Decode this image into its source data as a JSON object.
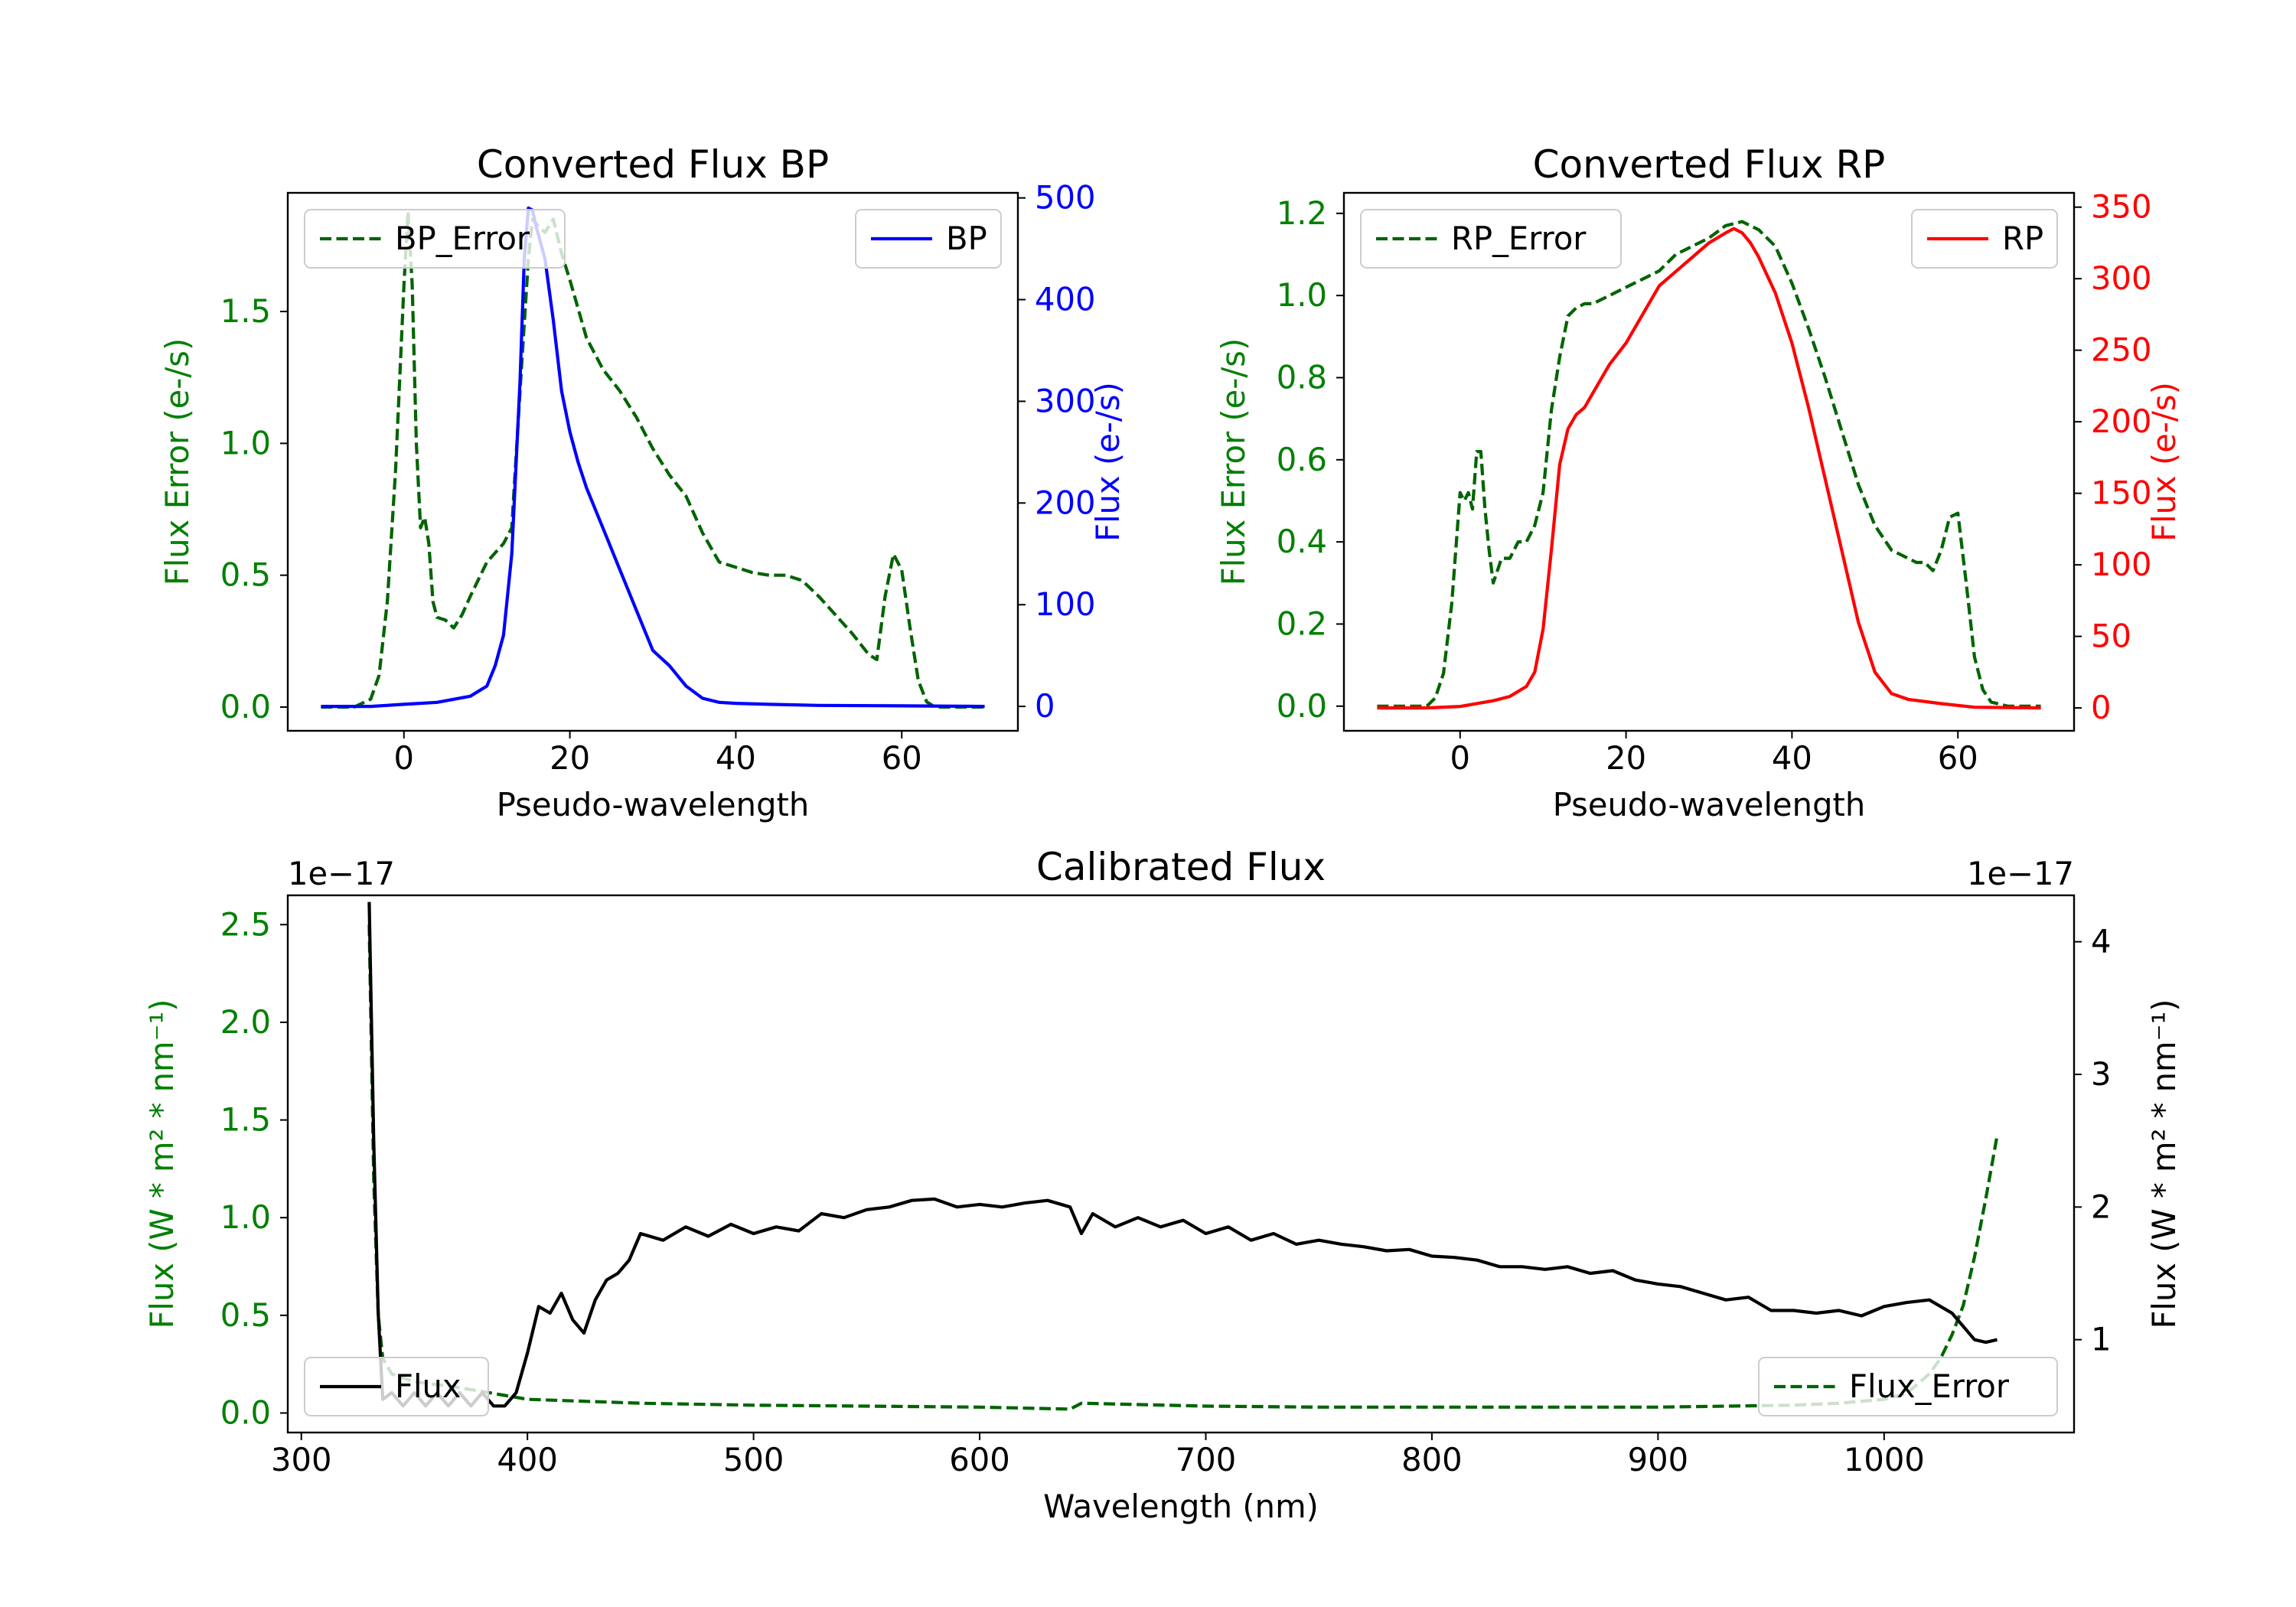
{
  "chart_data": [
    {
      "type": "line",
      "title": "Converted Flux BP",
      "xlabel": "Pseudo-wavelength",
      "ylabel_left": "Flux Error (e-/s)",
      "ylabel_right": "Flux (e-/s)",
      "xlim": [
        -14,
        74
      ],
      "ylim_left": [
        -0.09,
        1.95
      ],
      "ylim_right": [
        -24,
        505
      ],
      "xticks": [
        0,
        20,
        40,
        60
      ],
      "yticks_left": [
        0.0,
        0.5,
        1.0,
        1.5
      ],
      "yticks_right": [
        0,
        100,
        200,
        300,
        400,
        500
      ],
      "ytick_labels_left": [
        "0.0",
        "0.5",
        "1.0",
        "1.5"
      ],
      "left_color": "#008000",
      "right_color": "#0000ff",
      "legend_left": {
        "label": "BP_Error",
        "position": "upper-left"
      },
      "legend_right": {
        "label": "BP",
        "position": "upper-right"
      },
      "series": [
        {
          "name": "BP_Error",
          "axis": "left",
          "color": "#006400",
          "style": "dashed",
          "x": [
            -10,
            -6,
            -4,
            -3,
            -2,
            -1,
            0,
            0.5,
            1,
            1.5,
            2,
            2.5,
            3,
            3.5,
            4,
            5,
            6,
            7,
            8,
            10,
            12,
            13,
            14,
            15,
            15.5,
            16,
            17,
            18,
            19,
            20,
            22,
            24,
            26,
            28,
            30,
            32,
            34,
            36,
            38,
            40,
            42,
            44,
            46,
            48,
            50,
            52,
            54,
            56,
            57,
            58,
            59,
            60,
            61,
            62,
            63,
            64,
            66,
            70
          ],
          "y": [
            0,
            0,
            0.03,
            0.12,
            0.4,
            0.9,
            1.6,
            1.88,
            1.6,
            1.0,
            0.68,
            0.72,
            0.62,
            0.4,
            0.34,
            0.33,
            0.3,
            0.35,
            0.42,
            0.55,
            0.62,
            0.68,
            1.2,
            1.7,
            1.85,
            1.83,
            1.8,
            1.85,
            1.72,
            1.62,
            1.4,
            1.28,
            1.2,
            1.1,
            0.98,
            0.88,
            0.8,
            0.66,
            0.55,
            0.53,
            0.51,
            0.5,
            0.5,
            0.48,
            0.42,
            0.35,
            0.28,
            0.2,
            0.18,
            0.42,
            0.58,
            0.52,
            0.3,
            0.1,
            0.02,
            0,
            0,
            0
          ]
        },
        {
          "name": "BP",
          "axis": "right",
          "color": "#0000ff",
          "style": "solid",
          "x": [
            -10,
            -4,
            0,
            4,
            8,
            10,
            11,
            12,
            13,
            14,
            14.5,
            15,
            15.5,
            16,
            17,
            18,
            19,
            20,
            21,
            22,
            24,
            26,
            28,
            30,
            32,
            34,
            36,
            38,
            40,
            44,
            50,
            60,
            70
          ],
          "y": [
            0,
            0,
            2,
            4,
            10,
            20,
            40,
            70,
            150,
            320,
            440,
            490,
            488,
            470,
            440,
            380,
            310,
            270,
            240,
            215,
            175,
            135,
            95,
            55,
            40,
            20,
            8,
            4,
            3,
            2,
            1,
            0.5,
            0
          ]
        }
      ]
    },
    {
      "type": "line",
      "title": "Converted Flux RP",
      "xlabel": "Pseudo-wavelength",
      "ylabel_left": "Flux Error (e-/s)",
      "ylabel_right": "Flux (e-/s)",
      "xlim": [
        -14,
        74
      ],
      "ylim_left": [
        -0.06,
        1.25
      ],
      "ylim_right": [
        -16,
        360
      ],
      "xticks": [
        0,
        20,
        40,
        60
      ],
      "yticks_left": [
        0.0,
        0.2,
        0.4,
        0.6,
        0.8,
        1.0,
        1.2
      ],
      "yticks_right": [
        0,
        50,
        100,
        150,
        200,
        250,
        300,
        350
      ],
      "ytick_labels_left": [
        "0.0",
        "0.2",
        "0.4",
        "0.6",
        "0.8",
        "1.0",
        "1.2"
      ],
      "left_color": "#008000",
      "right_color": "#ff0000",
      "legend_left": {
        "label": "RP_Error",
        "position": "upper-left"
      },
      "legend_right": {
        "label": "RP",
        "position": "upper-right"
      },
      "series": [
        {
          "name": "RP_Error",
          "axis": "left",
          "color": "#006400",
          "style": "dashed",
          "x": [
            -10,
            -4,
            -3,
            -2,
            -1,
            0,
            0.5,
            1,
            1.5,
            2,
            2.5,
            3,
            3.5,
            4,
            5,
            6,
            7,
            8,
            9,
            10,
            11,
            12,
            13,
            14,
            15,
            16,
            18,
            20,
            22,
            24,
            26,
            28,
            30,
            32,
            34,
            36,
            38,
            40,
            42,
            44,
            46,
            48,
            50,
            52,
            54,
            55,
            56,
            57,
            58,
            59,
            60,
            61,
            62,
            63,
            64,
            66,
            70
          ],
          "y": [
            0,
            0,
            0.02,
            0.08,
            0.25,
            0.52,
            0.5,
            0.52,
            0.48,
            0.62,
            0.62,
            0.48,
            0.38,
            0.3,
            0.36,
            0.36,
            0.4,
            0.4,
            0.44,
            0.52,
            0.72,
            0.85,
            0.95,
            0.97,
            0.98,
            0.98,
            1.0,
            1.02,
            1.04,
            1.06,
            1.1,
            1.12,
            1.14,
            1.17,
            1.18,
            1.16,
            1.12,
            1.03,
            0.92,
            0.8,
            0.67,
            0.54,
            0.44,
            0.38,
            0.36,
            0.35,
            0.35,
            0.33,
            0.38,
            0.46,
            0.47,
            0.3,
            0.12,
            0.04,
            0.01,
            0,
            0
          ]
        },
        {
          "name": "RP",
          "axis": "right",
          "color": "#ff0000",
          "style": "solid",
          "x": [
            -10,
            -4,
            0,
            4,
            6,
            8,
            9,
            10,
            11,
            12,
            13,
            14,
            15,
            16,
            18,
            20,
            22,
            24,
            26,
            28,
            30,
            32,
            33,
            34,
            35,
            36,
            38,
            40,
            42,
            44,
            46,
            48,
            50,
            52,
            54,
            58,
            62,
            70
          ],
          "y": [
            0,
            0,
            1,
            5,
            8,
            15,
            25,
            55,
            110,
            170,
            195,
            205,
            210,
            220,
            240,
            255,
            275,
            295,
            305,
            315,
            325,
            332,
            335,
            332,
            325,
            315,
            290,
            255,
            210,
            160,
            110,
            60,
            25,
            10,
            6,
            3,
            0.5,
            0
          ]
        }
      ]
    },
    {
      "type": "line",
      "title": "Calibrated Flux",
      "xlabel": "Wavelength (nm)",
      "ylabel_left": "Flux (W * m² * nm⁻¹)",
      "ylabel_right": "Flux (W * m² * nm⁻¹)",
      "offset_left": "1e−17",
      "offset_right": "1e−17",
      "xlim": [
        294,
        1084
      ],
      "ylim_left": [
        -0.1,
        2.65
      ],
      "ylim_right": [
        0.3,
        4.35
      ],
      "xticks": [
        300,
        400,
        500,
        600,
        700,
        800,
        900,
        1000
      ],
      "yticks_left": [
        0.0,
        0.5,
        1.0,
        1.5,
        2.0,
        2.5
      ],
      "yticks_right": [
        1,
        2,
        3,
        4
      ],
      "ytick_labels_left": [
        "0.0",
        "0.5",
        "1.0",
        "1.5",
        "2.0",
        "2.5"
      ],
      "left_color": "#008000",
      "right_color": "#000000",
      "legend_left": {
        "label": "Flux",
        "position": "lower-left"
      },
      "legend_right": {
        "label": "Flux_Error",
        "position": "lower-right"
      },
      "series": [
        {
          "name": "Flux_Error",
          "axis": "left",
          "color": "#006400",
          "style": "dashed",
          "x": [
            330,
            332,
            334,
            336,
            340,
            350,
            370,
            390,
            400,
            450,
            500,
            550,
            600,
            640,
            645,
            700,
            750,
            800,
            900,
            960,
            980,
            1000,
            1010,
            1020,
            1025,
            1030,
            1035,
            1040,
            1045,
            1050
          ],
          "y": [
            2.5,
            1.2,
            0.5,
            0.28,
            0.2,
            0.16,
            0.13,
            0.09,
            0.07,
            0.05,
            0.04,
            0.035,
            0.03,
            0.02,
            0.05,
            0.035,
            0.03,
            0.03,
            0.03,
            0.04,
            0.05,
            0.07,
            0.1,
            0.2,
            0.28,
            0.4,
            0.55,
            0.8,
            1.1,
            1.42
          ]
        },
        {
          "name": "Flux",
          "axis": "right",
          "color": "#000000",
          "style": "solid",
          "x": [
            330,
            332,
            334,
            336,
            340,
            345,
            350,
            355,
            360,
            365,
            370,
            375,
            380,
            385,
            390,
            395,
            400,
            405,
            410,
            415,
            420,
            425,
            430,
            435,
            440,
            445,
            450,
            460,
            470,
            480,
            490,
            500,
            510,
            520,
            530,
            540,
            550,
            560,
            570,
            580,
            590,
            600,
            610,
            620,
            630,
            640,
            645,
            650,
            660,
            670,
            680,
            690,
            700,
            710,
            720,
            730,
            740,
            750,
            760,
            770,
            780,
            790,
            800,
            810,
            820,
            830,
            840,
            850,
            860,
            870,
            880,
            890,
            900,
            910,
            920,
            930,
            940,
            950,
            960,
            970,
            980,
            990,
            1000,
            1010,
            1020,
            1030,
            1040,
            1045,
            1050
          ],
          "y": [
            4.3,
            2.5,
            1.2,
            0.55,
            0.6,
            0.5,
            0.6,
            0.5,
            0.6,
            0.5,
            0.6,
            0.5,
            0.6,
            0.5,
            0.5,
            0.6,
            0.9,
            1.25,
            1.2,
            1.35,
            1.15,
            1.05,
            1.3,
            1.45,
            1.5,
            1.6,
            1.8,
            1.75,
            1.85,
            1.78,
            1.87,
            1.8,
            1.85,
            1.82,
            1.95,
            1.92,
            1.98,
            2.0,
            2.05,
            2.06,
            2.0,
            2.02,
            2.0,
            2.03,
            2.05,
            2.0,
            1.8,
            1.95,
            1.85,
            1.92,
            1.85,
            1.9,
            1.8,
            1.85,
            1.75,
            1.8,
            1.72,
            1.75,
            1.72,
            1.7,
            1.67,
            1.68,
            1.63,
            1.62,
            1.6,
            1.55,
            1.55,
            1.53,
            1.55,
            1.5,
            1.52,
            1.45,
            1.42,
            1.4,
            1.35,
            1.3,
            1.32,
            1.22,
            1.22,
            1.2,
            1.22,
            1.18,
            1.25,
            1.28,
            1.3,
            1.2,
            1.0,
            0.98,
            1.0
          ]
        }
      ]
    }
  ]
}
